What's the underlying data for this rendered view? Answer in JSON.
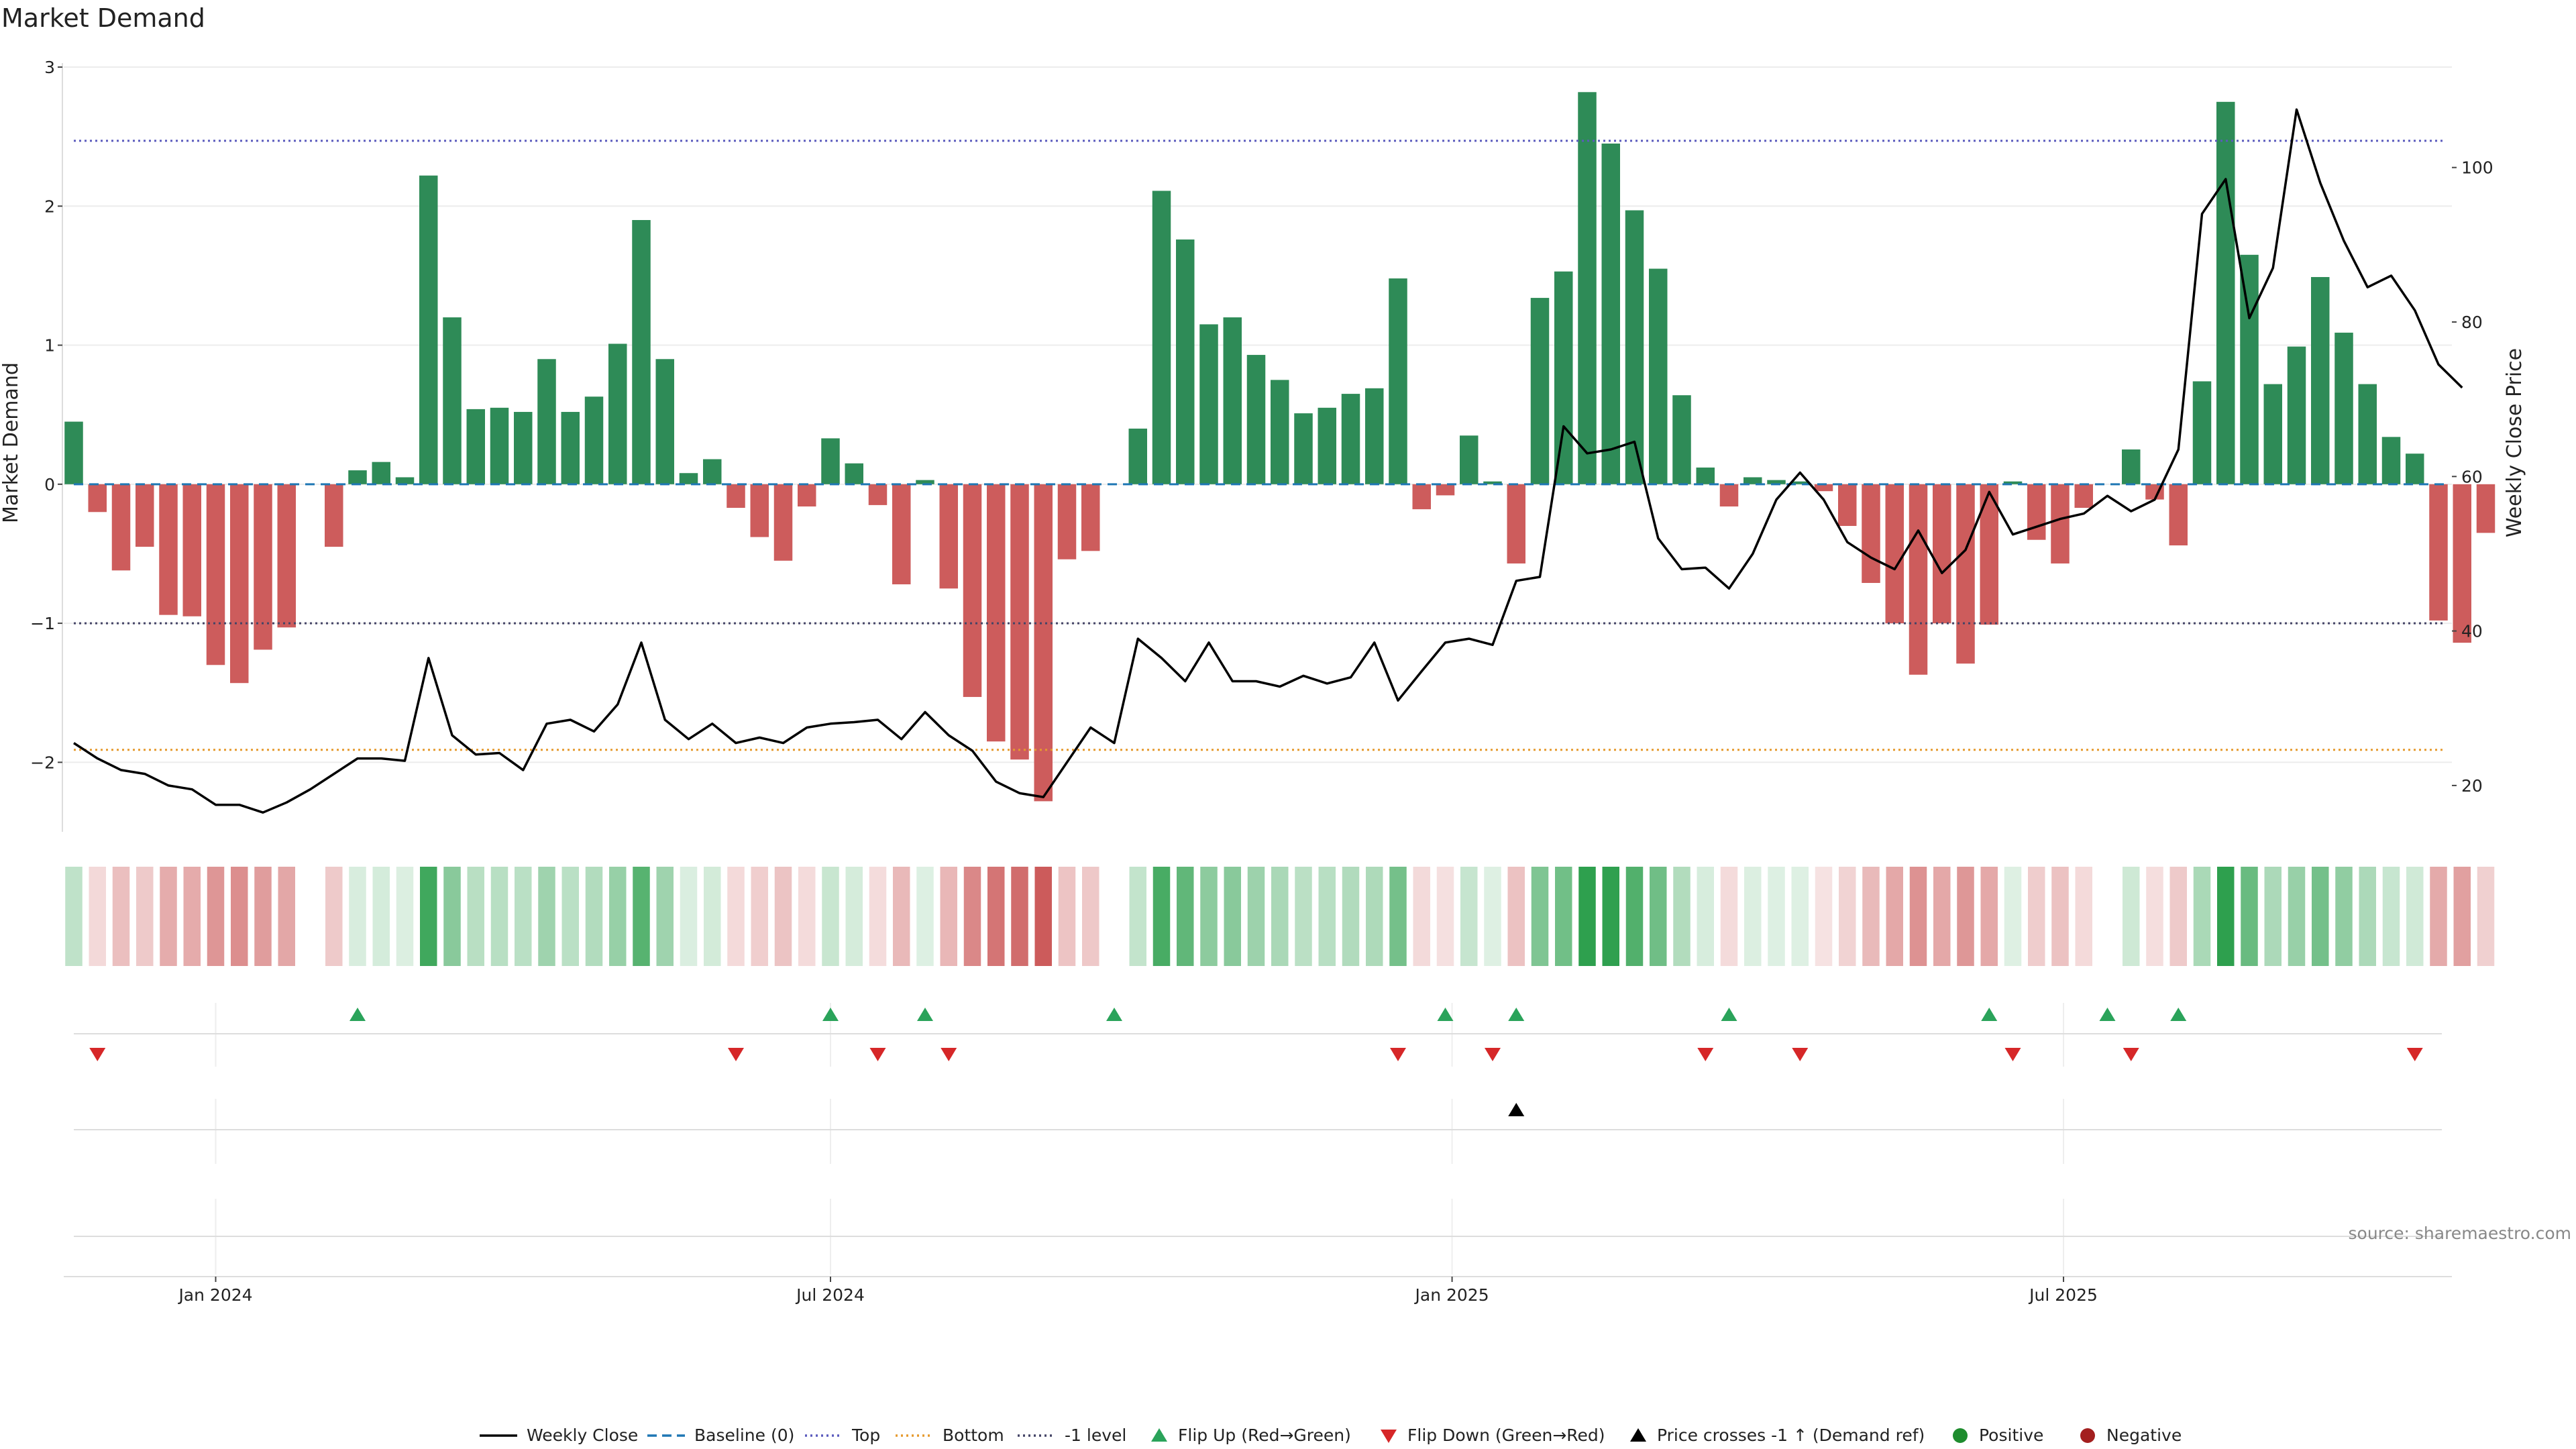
{
  "chart_data": {
    "title": "Market Demand",
    "type": "bar",
    "left_axis": {
      "label": "Market Demand",
      "ylim": [
        -2.5,
        3.0
      ],
      "ticks": [
        "3",
        "2",
        "1",
        "0",
        "−1",
        "−2"
      ],
      "tick_values": [
        3,
        2,
        1,
        0,
        -1,
        -2
      ]
    },
    "right_axis": {
      "label": "Weekly Close Price",
      "ylim": [
        14,
        113
      ],
      "ticks": [
        "100",
        "80",
        "60",
        "40",
        "20"
      ],
      "tick_values": [
        100,
        80,
        60,
        40,
        20
      ]
    },
    "x_axis": {
      "start_date": "2023-11-20",
      "weeks": 103,
      "tick_labels": [
        "Jan 2024",
        "Jul 2024",
        "Jan 2025",
        "Jul 2025"
      ],
      "tick_dates": [
        "2024-01-01",
        "2024-07-01",
        "2025-01-01",
        "2025-07-01"
      ]
    },
    "reference_lines": {
      "baseline": 0,
      "top": 2.47,
      "bottom": -1.91,
      "minus_one": -1
    },
    "demand": [
      0.45,
      -0.2,
      -0.62,
      -0.45,
      -0.94,
      -0.95,
      -1.3,
      -1.43,
      -1.19,
      -1.03,
      0.0,
      -0.45,
      0.1,
      0.16,
      0.05,
      2.22,
      1.2,
      0.54,
      0.55,
      0.52,
      0.9,
      0.52,
      0.63,
      1.01,
      1.9,
      0.9,
      0.08,
      0.18,
      -0.17,
      -0.38,
      -0.55,
      -0.16,
      0.33,
      0.15,
      -0.15,
      -0.72,
      0.03,
      -0.75,
      -1.53,
      -1.85,
      -1.98,
      -2.28,
      -0.54,
      -0.48,
      0.0,
      0.4,
      2.11,
      1.76,
      1.15,
      1.2,
      0.93,
      0.75,
      0.51,
      0.55,
      0.65,
      0.69,
      1.48,
      -0.18,
      -0.08,
      0.35,
      0.02,
      -0.57,
      1.34,
      1.53,
      2.82,
      2.45,
      1.97,
      1.55,
      0.64,
      0.12,
      -0.16,
      0.05,
      0.03,
      0.02,
      -0.05,
      -0.3,
      -0.71,
      -1.0,
      -1.37,
      -1.0,
      -1.29,
      -1.01,
      0.02,
      -0.4,
      -0.57,
      -0.17,
      0.0,
      0.25,
      -0.11,
      -0.44,
      0.74,
      2.75,
      1.65,
      0.72,
      0.99,
      1.49,
      1.09,
      0.72,
      0.34,
      0.22,
      -0.98,
      -1.14,
      -0.35
    ],
    "weekly_close": [
      25.5,
      23.5,
      22,
      21.5,
      20,
      19.5,
      17.5,
      17.5,
      16.5,
      17.8,
      19.5,
      21.5,
      23.5,
      23.5,
      23.2,
      36.5,
      26.5,
      24,
      24.2,
      22,
      28,
      28.5,
      27,
      30.5,
      38.5,
      28.5,
      26,
      28,
      25.5,
      26.2,
      25.5,
      27.5,
      28,
      28.2,
      28.5,
      26,
      29.5,
      26.5,
      24.5,
      20.5,
      19,
      18.5,
      23,
      27.5,
      25.5,
      39,
      36.5,
      33.5,
      38.5,
      33.5,
      33.5,
      32.8,
      34.2,
      33.2,
      34,
      38.5,
      31,
      34.8,
      38.5,
      39,
      38.2,
      46.5,
      47,
      66.5,
      63,
      63.5,
      64.5,
      52,
      48,
      48.2,
      45.5,
      50,
      57,
      60.5,
      57,
      51.5,
      49.5,
      48,
      53,
      47.5,
      50.5,
      58,
      52.5,
      53.5,
      54.5,
      55.2,
      57.5,
      55.5,
      57,
      63.5,
      94,
      98.5,
      80.5,
      87,
      107.5,
      98,
      90.5,
      84.5,
      86,
      81.5,
      74.5,
      71.5
    ],
    "flip_up_weeks": [
      12,
      32,
      36,
      44,
      58,
      61,
      70,
      81,
      86,
      89
    ],
    "flip_down_weeks": [
      1,
      28,
      34,
      37,
      56,
      60,
      69,
      73,
      82,
      87,
      99
    ],
    "price_cross_weeks": [
      61
    ],
    "legend": [
      "Weekly Close",
      "Baseline (0)",
      "Top",
      "Bottom",
      "-1 level",
      "Flip Up (Red→Green)",
      "Flip Down (Green→Red)",
      "Price crosses -1 ↑ (Demand ref)",
      "Positive",
      "Negative"
    ],
    "source": "source: sharemaestro.com",
    "colors": {
      "positive": "#2e8b57",
      "negative": "#cd5c5c",
      "flip_up": "#2aa35a",
      "flip_down": "#d62728",
      "price": "#000000",
      "baseline": "#1f77b4",
      "top": "#5b5bbd",
      "bottom": "#e69a2e",
      "minus_one": "#444466",
      "positive_dot": "#1e8c2e",
      "negative_dot": "#a31f1f"
    }
  }
}
